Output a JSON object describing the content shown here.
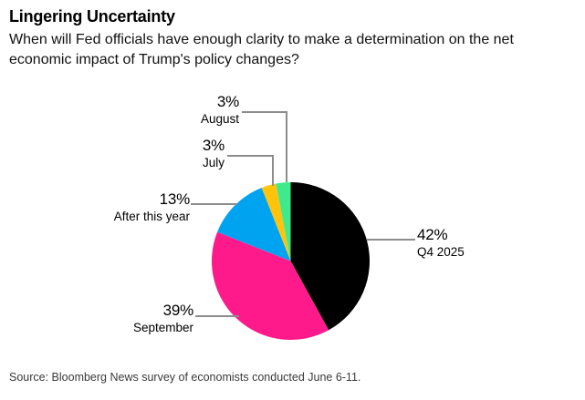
{
  "chart_data": {
    "type": "pie",
    "title": "Lingering Uncertainty",
    "subtitle": "When will Fed officials have enough clarity to make a determination on the net economic impact of Trump's policy changes?",
    "source": "Source: Bloomberg News survey of economists conducted June 6-11.",
    "start_angle_deg": 0,
    "direction": "clockwise",
    "legend": "none",
    "slices": [
      {
        "label": "Q4 2025",
        "value": 42,
        "display": "42%",
        "color": "#000000"
      },
      {
        "label": "September",
        "value": 39,
        "display": "39%",
        "color": "#FF1A8C"
      },
      {
        "label": "After this year",
        "value": 13,
        "display": "13%",
        "color": "#00A3F0"
      },
      {
        "label": "July",
        "value": 3,
        "display": "3%",
        "color": "#FFC30B"
      },
      {
        "label": "August",
        "value": 3,
        "display": "3%",
        "color": "#3EEA8C"
      }
    ],
    "leader_line_color": "#8C8C8C"
  }
}
